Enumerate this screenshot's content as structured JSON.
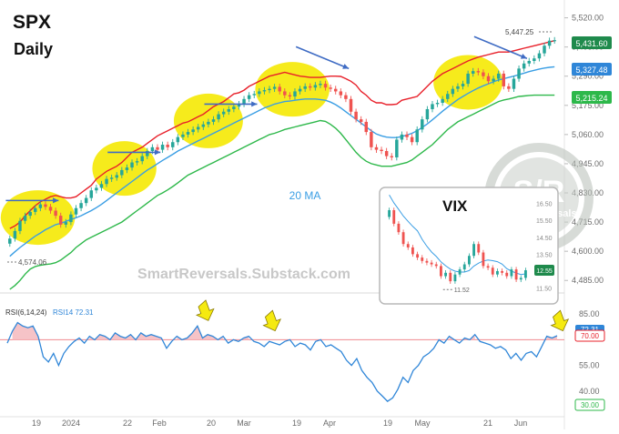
{
  "title": "SPX",
  "subtitle": "Daily",
  "watermark": "SmartReversals.Substack.com",
  "logo": {
    "big": "S/R",
    "small": "SmartReversals"
  },
  "ma_label": "20 MA",
  "colors": {
    "bull": "#26a69a",
    "bear": "#ef5350",
    "upper_band": "#e8202a",
    "ma": "#3a9ee4",
    "lower_band": "#2db84a",
    "highlight": "#f5ea10",
    "arrow": "#3f6cc4",
    "rsi": "#2f86d8",
    "overbought_fill": "#f4b9bd"
  },
  "chart_data": [
    {
      "type": "candlestick",
      "name": "SPX",
      "ylim": [
        4450,
        5540
      ],
      "y_ticks": [
        "5,520.00",
        "5,405.00",
        "5,290.00",
        "5,175.00",
        "5,060.00",
        "4,945.00",
        "4,830.00",
        "4,715.00",
        "4,600.00",
        "4,485.00"
      ],
      "x_ticks": [
        "19",
        "2024",
        "22",
        "Feb",
        "20",
        "Mar",
        "19",
        "Apr",
        "19",
        "May",
        "21",
        "Jun"
      ],
      "price_labels": {
        "last": "5,431.60",
        "ma": "5,327.48",
        "lower": "5,215.24"
      },
      "annotations": {
        "high": "5,447.25",
        "low": "4,574.06"
      },
      "close": [
        4650,
        4680,
        4720,
        4740,
        4755,
        4770,
        4785,
        4775,
        4760,
        4740,
        4705,
        4715,
        4745,
        4770,
        4790,
        4810,
        4840,
        4850,
        4865,
        4885,
        4890,
        4900,
        4920,
        4930,
        4950,
        4955,
        4975,
        4995,
        5010,
        5000,
        5020,
        5010,
        5030,
        5050,
        5060,
        5070,
        5080,
        5090,
        5100,
        5110,
        5120,
        5140,
        5150,
        5160,
        5170,
        5180,
        5200,
        5215,
        5220,
        5230,
        5235,
        5240,
        5248,
        5230,
        5215,
        5210,
        5230,
        5240,
        5250,
        5245,
        5255,
        5260,
        5245,
        5240,
        5230,
        5215,
        5200,
        5150,
        5120,
        5110,
        5070,
        5010,
        5000,
        4995,
        4975,
        4970,
        5040,
        5060,
        5050,
        5030,
        5080,
        5120,
        5160,
        5180,
        5185,
        5200,
        5220,
        5240,
        5250,
        5260,
        5300,
        5310,
        5305,
        5290,
        5270,
        5280,
        5300,
        5250,
        5240,
        5280,
        5320,
        5340,
        5350,
        5360,
        5380,
        5410,
        5430,
        5432
      ],
      "upper_band": [
        4690,
        4700,
        4715,
        4740,
        4760,
        4780,
        4795,
        4805,
        4815,
        4820,
        4815,
        4810,
        4810,
        4815,
        4830,
        4845,
        4860,
        4885,
        4900,
        4915,
        4925,
        4935,
        4950,
        4970,
        4990,
        5000,
        5010,
        5025,
        5040,
        5055,
        5065,
        5075,
        5085,
        5095,
        5105,
        5110,
        5120,
        5130,
        5140,
        5155,
        5170,
        5180,
        5190,
        5205,
        5220,
        5225,
        5235,
        5250,
        5260,
        5270,
        5280,
        5290,
        5295,
        5300,
        5305,
        5300,
        5295,
        5290,
        5288,
        5285,
        5285,
        5285,
        5288,
        5290,
        5290,
        5289,
        5280,
        5270,
        5255,
        5230,
        5215,
        5195,
        5185,
        5185,
        5178,
        5178,
        5180,
        5195,
        5200,
        5205,
        5210,
        5230,
        5250,
        5270,
        5285,
        5300,
        5310,
        5320,
        5330,
        5340,
        5350,
        5358,
        5365,
        5370,
        5375,
        5380,
        5385,
        5385,
        5385,
        5390,
        5395,
        5400,
        5405,
        5410,
        5415,
        5420,
        5425,
        5430
      ],
      "ma20": [
        4580,
        4598,
        4615,
        4630,
        4645,
        4660,
        4672,
        4685,
        4695,
        4705,
        4710,
        4718,
        4725,
        4732,
        4740,
        4750,
        4760,
        4772,
        4785,
        4800,
        4815,
        4830,
        4845,
        4860,
        4875,
        4890,
        4905,
        4920,
        4932,
        4945,
        4958,
        4970,
        4982,
        4995,
        5005,
        5015,
        5025,
        5035,
        5045,
        5055,
        5065,
        5075,
        5085,
        5095,
        5105,
        5115,
        5125,
        5135,
        5145,
        5155,
        5165,
        5172,
        5180,
        5185,
        5190,
        5192,
        5195,
        5198,
        5200,
        5200,
        5200,
        5198,
        5195,
        5188,
        5178,
        5165,
        5150,
        5135,
        5120,
        5105,
        5090,
        5075,
        5062,
        5055,
        5050,
        5048,
        5048,
        5052,
        5058,
        5065,
        5075,
        5088,
        5102,
        5118,
        5135,
        5152,
        5168,
        5183,
        5198,
        5210,
        5222,
        5233,
        5243,
        5252,
        5260,
        5268,
        5275,
        5280,
        5285,
        5290,
        5296,
        5302,
        5308,
        5313,
        5318,
        5322,
        5325,
        5327
      ],
      "lower_band": [
        4450,
        4465,
        4485,
        4510,
        4530,
        4540,
        4545,
        4548,
        4550,
        4555,
        4565,
        4580,
        4595,
        4615,
        4630,
        4645,
        4655,
        4665,
        4675,
        4685,
        4695,
        4705,
        4715,
        4730,
        4745,
        4760,
        4775,
        4790,
        4805,
        4820,
        4830,
        4842,
        4855,
        4870,
        4885,
        4900,
        4910,
        4920,
        4930,
        4940,
        4950,
        4960,
        4970,
        4980,
        4990,
        5000,
        5010,
        5020,
        5030,
        5040,
        5050,
        5060,
        5065,
        5072,
        5080,
        5085,
        5090,
        5095,
        5100,
        5105,
        5110,
        5115,
        5112,
        5100,
        5085,
        5065,
        5040,
        5015,
        4990,
        4970,
        4955,
        4945,
        4940,
        4935,
        4935,
        4935,
        4940,
        4945,
        4950,
        4960,
        4975,
        4990,
        5005,
        5020,
        5040,
        5060,
        5080,
        5095,
        5110,
        5120,
        5130,
        5140,
        5150,
        5160,
        5170,
        5180,
        5190,
        5196,
        5200,
        5205,
        5210,
        5212,
        5214,
        5215,
        5215,
        5215,
        5215,
        5215
      ]
    },
    {
      "type": "line",
      "name": "RSI14",
      "indicator_label": "RSI(6,14,24)",
      "series_label": "RSI14 72.31",
      "ylim": [
        25,
        92
      ],
      "y_ticks": [
        "85.00",
        "70.00",
        "55.00",
        "40.00",
        "30.00"
      ],
      "level_labels": {
        "current": "72.31",
        "overbought": "70.00",
        "oversold": "30.00"
      },
      "values": [
        68,
        75,
        80,
        78,
        77,
        78,
        72,
        60,
        57,
        62,
        55,
        62,
        66,
        69,
        71,
        68,
        72,
        70,
        73,
        72,
        70,
        74,
        72,
        71,
        73,
        70,
        74,
        72,
        73,
        72,
        71,
        65,
        69,
        72,
        70,
        71,
        74,
        78,
        71,
        73,
        72,
        70,
        72,
        68,
        70,
        69,
        71,
        72,
        69,
        68,
        66,
        69,
        68,
        67,
        69,
        70,
        66,
        68,
        67,
        64,
        69,
        70,
        66,
        67,
        65,
        63,
        58,
        55,
        59,
        52,
        48,
        45,
        40,
        37,
        34,
        36,
        41,
        48,
        45,
        52,
        55,
        60,
        62,
        65,
        70,
        68,
        72,
        70,
        68,
        71,
        70,
        73,
        69,
        68,
        67,
        65,
        66,
        64,
        59,
        62,
        58,
        62,
        63,
        60,
        66,
        72,
        71,
        72.31
      ]
    },
    {
      "type": "line",
      "name": "VIX",
      "title": "VIX",
      "ylim": [
        11.1,
        16.8
      ],
      "y_ticks": [
        "16.50",
        "15.50",
        "14.50",
        "13.50",
        "12.50",
        "11.50"
      ],
      "labels": {
        "last": "12.55",
        "low": "11.52"
      },
      "close": [
        16.1,
        15.3,
        14.8,
        14.1,
        13.9,
        13.5,
        13.3,
        13.1,
        13.0,
        12.9,
        12.8,
        12.2,
        12.4,
        11.9,
        12.3,
        12.6,
        12.9,
        13.4,
        14.1,
        13.6,
        12.8,
        12.7,
        12.3,
        12.5,
        12.4,
        12.2,
        12.6,
        12.0,
        12.1,
        12.55
      ]
    }
  ]
}
